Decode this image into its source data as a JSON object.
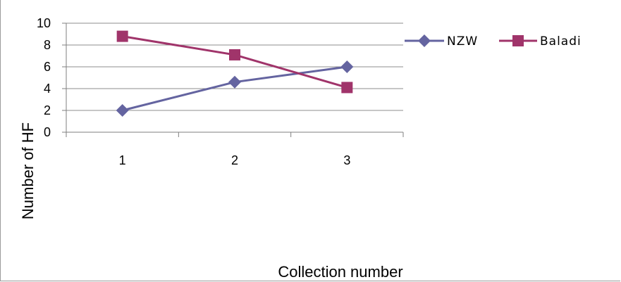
{
  "chart_data": {
    "type": "line",
    "categories": [
      "1",
      "2",
      "3"
    ],
    "series": [
      {
        "name": "NZW",
        "values": [
          2,
          4.6,
          6
        ],
        "color": "#6464a0",
        "marker": "diamond"
      },
      {
        "name": "Baladi",
        "values": [
          8.8,
          7.1,
          4.1
        ],
        "color": "#a0346a",
        "marker": "square"
      }
    ],
    "title": "",
    "xlabel": "Collection number",
    "ylabel": "Number of HF",
    "ylim": [
      0,
      10
    ],
    "yticks": [
      "0",
      "2",
      "4",
      "6",
      "8",
      "10"
    ],
    "grid": true,
    "legend_position": "right"
  }
}
